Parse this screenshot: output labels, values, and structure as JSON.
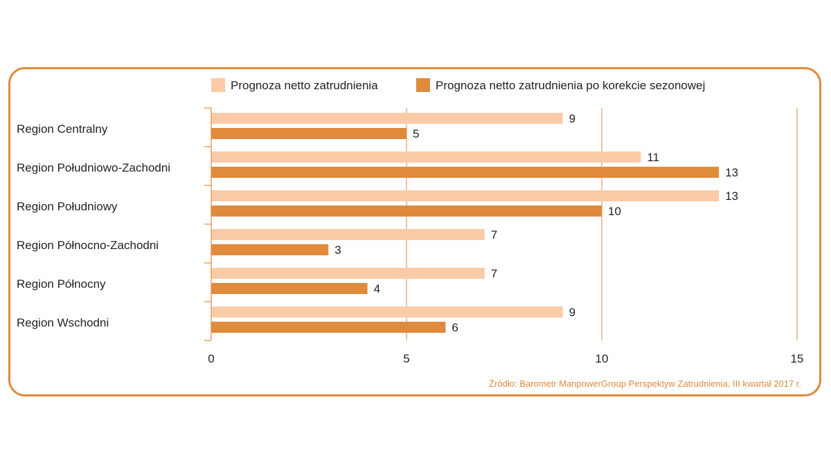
{
  "chart_data": {
    "type": "bar",
    "orientation": "horizontal",
    "categories": [
      "Region Centralny",
      "Region Południowo-Zachodni",
      "Region Południowy",
      "Region Północno-Zachodni",
      "Region Północny",
      "Region Wschodni"
    ],
    "series": [
      {
        "name": "Prognoza netto zatrudnienia",
        "color": "#fbcba8",
        "values": [
          9,
          11,
          13,
          7,
          7,
          9
        ]
      },
      {
        "name": "Prognoza netto zatrudnienia po korekcie sezonowej",
        "color": "#e08a3c",
        "values": [
          5,
          13,
          10,
          3,
          4,
          6
        ]
      }
    ],
    "xlim": [
      0,
      15
    ],
    "xticks": [
      0,
      5,
      10,
      15
    ],
    "grid": true,
    "legend": "top",
    "source": "Źródło: Barometr ManpowerGroup Perspektyw Zatrudnienia, III kwartał 2017 r."
  },
  "colors": {
    "accent": "#e08a3c",
    "light": "#fbcba8",
    "text": "#222222"
  }
}
